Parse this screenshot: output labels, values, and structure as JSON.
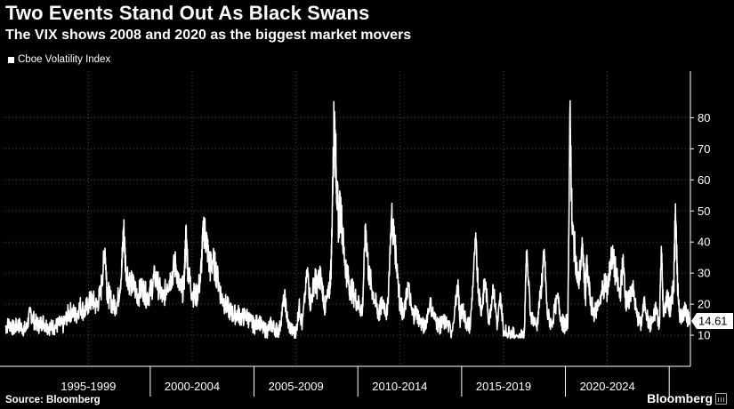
{
  "chart_data": {
    "type": "line",
    "title": "Two Events Stand Out As Black Swans",
    "subtitle": "The VIX shows 2008 and 2020 as the biggest market movers",
    "source": "Source: Bloomberg",
    "brand": "Bloomberg",
    "series": [
      {
        "name": "Cboe Volatility Index",
        "color": "#ffffff",
        "last_value": 14.61,
        "last_value_label": "14.61",
        "points": [
          [
            1993.0,
            12.5
          ],
          [
            1993.2,
            13.8
          ],
          [
            1993.4,
            12.0
          ],
          [
            1993.6,
            13.5
          ],
          [
            1993.8,
            12.4
          ],
          [
            1994.0,
            11.8
          ],
          [
            1994.2,
            17.5
          ],
          [
            1994.4,
            14.5
          ],
          [
            1994.6,
            13.2
          ],
          [
            1994.8,
            14.5
          ],
          [
            1995.0,
            13.0
          ],
          [
            1995.2,
            12.5
          ],
          [
            1995.4,
            12.8
          ],
          [
            1995.6,
            13.5
          ],
          [
            1995.8,
            13.2
          ],
          [
            1996.0,
            16.5
          ],
          [
            1996.2,
            17.8
          ],
          [
            1996.4,
            16.2
          ],
          [
            1996.6,
            19.5
          ],
          [
            1996.8,
            17.5
          ],
          [
            1997.0,
            20.0
          ],
          [
            1997.2,
            21.5
          ],
          [
            1997.4,
            19.2
          ],
          [
            1997.6,
            24.0
          ],
          [
            1997.8,
            38.0
          ],
          [
            1997.9,
            25.0
          ],
          [
            1998.0,
            22.5
          ],
          [
            1998.2,
            19.5
          ],
          [
            1998.4,
            20.5
          ],
          [
            1998.6,
            30.0
          ],
          [
            1998.7,
            45.0
          ],
          [
            1998.8,
            32.0
          ],
          [
            1999.0,
            27.0
          ],
          [
            1999.2,
            25.5
          ],
          [
            1999.4,
            23.0
          ],
          [
            1999.6,
            25.5
          ],
          [
            1999.8,
            22.5
          ],
          [
            2000.0,
            24.0
          ],
          [
            2000.2,
            29.0
          ],
          [
            2000.4,
            25.5
          ],
          [
            2000.6,
            21.5
          ],
          [
            2000.8,
            26.5
          ],
          [
            2001.0,
            29.0
          ],
          [
            2001.2,
            33.0
          ],
          [
            2001.4,
            24.5
          ],
          [
            2001.6,
            25.0
          ],
          [
            2001.7,
            43.0
          ],
          [
            2001.8,
            31.0
          ],
          [
            2002.0,
            23.5
          ],
          [
            2002.2,
            22.5
          ],
          [
            2002.4,
            28.0
          ],
          [
            2002.55,
            45.0
          ],
          [
            2002.7,
            40.0
          ],
          [
            2002.85,
            31.5
          ],
          [
            2003.0,
            34.0
          ],
          [
            2003.2,
            29.5
          ],
          [
            2003.4,
            22.5
          ],
          [
            2003.6,
            20.0
          ],
          [
            2003.8,
            18.0
          ],
          [
            2004.0,
            16.5
          ],
          [
            2004.2,
            17.0
          ],
          [
            2004.4,
            15.5
          ],
          [
            2004.6,
            16.5
          ],
          [
            2004.8,
            14.5
          ],
          [
            2005.0,
            13.0
          ],
          [
            2005.2,
            15.0
          ],
          [
            2005.4,
            12.0
          ],
          [
            2005.6,
            11.5
          ],
          [
            2005.8,
            13.5
          ],
          [
            2006.0,
            12.0
          ],
          [
            2006.2,
            11.5
          ],
          [
            2006.45,
            23.0
          ],
          [
            2006.6,
            14.0
          ],
          [
            2006.8,
            11.5
          ],
          [
            2007.0,
            10.5
          ],
          [
            2007.15,
            19.5
          ],
          [
            2007.3,
            13.0
          ],
          [
            2007.55,
            31.0
          ],
          [
            2007.7,
            20.0
          ],
          [
            2007.9,
            28.0
          ],
          [
            2008.0,
            26.0
          ],
          [
            2008.2,
            29.0
          ],
          [
            2008.4,
            18.5
          ],
          [
            2008.6,
            24.0
          ],
          [
            2008.7,
            33.0
          ],
          [
            2008.8,
            69.0
          ],
          [
            2008.85,
            80.9
          ],
          [
            2008.95,
            60.0
          ],
          [
            2009.05,
            46.0
          ],
          [
            2009.15,
            52.0
          ],
          [
            2009.3,
            37.0
          ],
          [
            2009.45,
            30.0
          ],
          [
            2009.6,
            25.5
          ],
          [
            2009.8,
            23.0
          ],
          [
            2010.0,
            20.0
          ],
          [
            2010.2,
            18.0
          ],
          [
            2010.35,
            45.8
          ],
          [
            2010.5,
            30.0
          ],
          [
            2010.7,
            24.0
          ],
          [
            2010.9,
            18.5
          ],
          [
            2011.0,
            17.0
          ],
          [
            2011.2,
            21.0
          ],
          [
            2011.4,
            16.5
          ],
          [
            2011.6,
            48.0
          ],
          [
            2011.75,
            40.0
          ],
          [
            2011.9,
            30.0
          ],
          [
            2012.0,
            21.0
          ],
          [
            2012.2,
            16.0
          ],
          [
            2012.4,
            26.5
          ],
          [
            2012.6,
            16.5
          ],
          [
            2012.8,
            17.5
          ],
          [
            2013.0,
            14.0
          ],
          [
            2013.2,
            12.5
          ],
          [
            2013.45,
            20.5
          ],
          [
            2013.7,
            15.0
          ],
          [
            2013.9,
            13.0
          ],
          [
            2014.0,
            13.5
          ],
          [
            2014.2,
            14.5
          ],
          [
            2014.5,
            11.0
          ],
          [
            2014.8,
            26.0
          ],
          [
            2014.9,
            15.0
          ],
          [
            2015.0,
            19.0
          ],
          [
            2015.2,
            14.0
          ],
          [
            2015.4,
            13.0
          ],
          [
            2015.65,
            40.7
          ],
          [
            2015.8,
            24.0
          ],
          [
            2015.95,
            18.0
          ],
          [
            2016.1,
            28.0
          ],
          [
            2016.3,
            14.5
          ],
          [
            2016.5,
            25.8
          ],
          [
            2016.7,
            13.0
          ],
          [
            2016.85,
            22.5
          ],
          [
            2017.0,
            11.5
          ],
          [
            2017.3,
            10.5
          ],
          [
            2017.6,
            10.0
          ],
          [
            2017.9,
            9.5
          ],
          [
            2018.0,
            11.0
          ],
          [
            2018.1,
            37.0
          ],
          [
            2018.3,
            17.0
          ],
          [
            2018.6,
            12.5
          ],
          [
            2018.8,
            25.0
          ],
          [
            2018.97,
            36.0
          ],
          [
            2019.1,
            17.0
          ],
          [
            2019.3,
            13.5
          ],
          [
            2019.6,
            22.0
          ],
          [
            2019.8,
            14.5
          ],
          [
            2019.95,
            13.0
          ],
          [
            2020.1,
            15.0
          ],
          [
            2020.2,
            82.7
          ],
          [
            2020.3,
            45.0
          ],
          [
            2020.45,
            36.0
          ],
          [
            2020.6,
            26.0
          ],
          [
            2020.8,
            38.0
          ],
          [
            2020.95,
            22.5
          ],
          [
            2021.0,
            33.0
          ],
          [
            2021.2,
            20.0
          ],
          [
            2021.4,
            17.0
          ],
          [
            2021.7,
            23.0
          ],
          [
            2021.9,
            27.0
          ],
          [
            2022.0,
            24.0
          ],
          [
            2022.2,
            36.0
          ],
          [
            2022.4,
            30.0
          ],
          [
            2022.6,
            22.5
          ],
          [
            2022.75,
            33.5
          ],
          [
            2022.9,
            21.0
          ],
          [
            2023.0,
            20.0
          ],
          [
            2023.2,
            26.5
          ],
          [
            2023.4,
            17.0
          ],
          [
            2023.6,
            13.0
          ],
          [
            2023.8,
            21.0
          ],
          [
            2024.0,
            13.0
          ],
          [
            2024.2,
            14.5
          ],
          [
            2024.35,
            19.0
          ],
          [
            2024.5,
            12.5
          ],
          [
            2024.6,
            38.6
          ],
          [
            2024.7,
            16.0
          ],
          [
            2024.9,
            23.0
          ],
          [
            2025.0,
            18.0
          ],
          [
            2025.1,
            21.0
          ],
          [
            2025.2,
            27.0
          ],
          [
            2025.28,
            52.3
          ],
          [
            2025.38,
            25.0
          ],
          [
            2025.5,
            17.0
          ],
          [
            2025.65,
            15.5
          ],
          [
            2025.75,
            20.0
          ],
          [
            2025.85,
            16.0
          ],
          [
            2025.96,
            14.61
          ]
        ]
      }
    ],
    "x_range": [
      1993.0,
      2026.0
    ],
    "period_labels": [
      "1995-1999",
      "2000-2004",
      "2005-2009",
      "2010-2014",
      "2015-2019",
      "2020-2024"
    ],
    "period_centers": [
      1997.0,
      2002.0,
      2007.0,
      2012.0,
      2017.0,
      2022.0
    ],
    "period_dividers": [
      1999.98,
      2004.98,
      2009.98,
      2014.98,
      2019.98,
      2024.98
    ],
    "y_axis": {
      "min": 0,
      "max": 95,
      "ticks": [
        10,
        20,
        30,
        40,
        50,
        60,
        70,
        80
      ],
      "tick_labels": [
        "10",
        "20",
        "30",
        "40",
        "50",
        "60",
        "70",
        "80"
      ],
      "position": "right"
    },
    "grid": true,
    "legend": "top-left"
  }
}
